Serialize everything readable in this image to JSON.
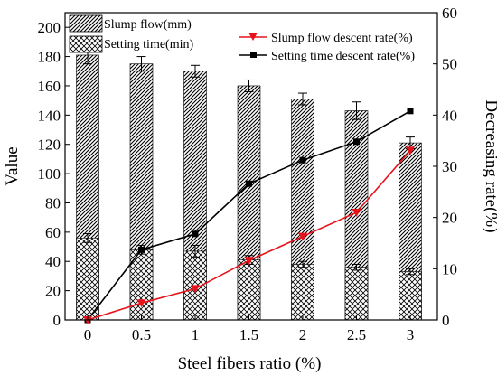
{
  "chart_data": {
    "type": "bar",
    "categories": [
      "0",
      "0.5",
      "1",
      "1.5",
      "2",
      "2.5",
      "3"
    ],
    "xlabel": "Steel fibers ratio (%)",
    "ylabel": "Value",
    "y2label": "Decreasing rate(%)",
    "ylim": [
      0,
      210
    ],
    "y2lim": [
      0,
      60
    ],
    "yticks": [
      "0",
      "20",
      "40",
      "60",
      "80",
      "100",
      "120",
      "140",
      "160",
      "180",
      "200"
    ],
    "y2ticks": [
      "0",
      "10",
      "20",
      "30",
      "40",
      "50",
      "60"
    ],
    "bar_series": [
      {
        "name": "Slump flow(mm)",
        "pattern": "diagonal-hatch",
        "values": [
          181,
          175,
          170,
          160,
          151,
          143,
          121
        ],
        "errors": [
          6,
          5,
          4,
          4,
          4,
          6,
          4
        ]
      },
      {
        "name": "Setting time(min)",
        "pattern": "cross-hatch",
        "values": [
          56,
          48,
          47,
          41,
          38,
          36,
          33
        ],
        "errors": [
          3,
          3,
          4,
          3,
          2,
          2,
          2
        ]
      }
    ],
    "line_series": [
      {
        "name": "Slump flow descent rate(%)",
        "color": "#e8121b",
        "marker": "triangle-down",
        "axis": "right",
        "values": [
          0,
          3.3,
          6.1,
          11.6,
          16.3,
          21.0,
          33.1
        ]
      },
      {
        "name": "Setting time descent rate(%)",
        "color": "#000000",
        "marker": "square",
        "axis": "right",
        "values": [
          0,
          13.7,
          16.8,
          26.6,
          31.2,
          34.8,
          40.8
        ]
      }
    ],
    "grid": false,
    "legend_placement": "top"
  }
}
